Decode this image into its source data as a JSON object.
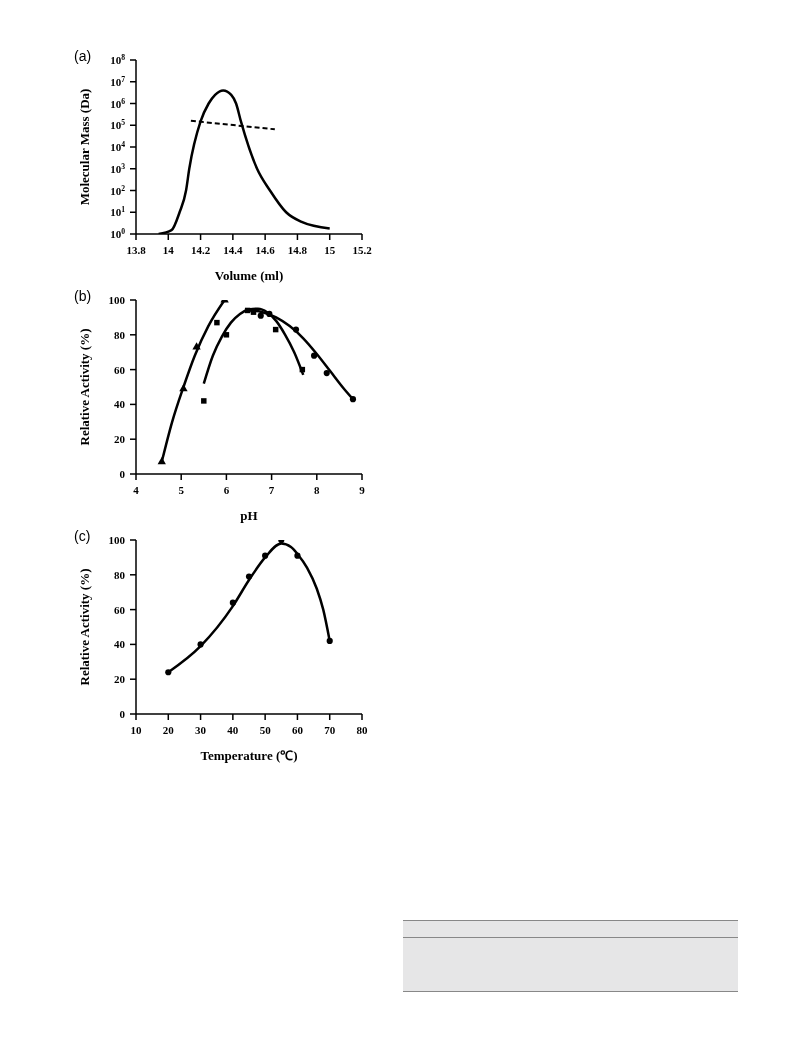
{
  "chart_data": [
    {
      "type": "line",
      "title": "(a)",
      "xlabel": "Volume (ml)",
      "ylabel": "Molecular Mass (Da)",
      "log": "y",
      "legend": false,
      "grid": false,
      "xlim": [
        13.8,
        15.2
      ],
      "xticks": [
        13.8,
        14,
        14.2,
        14.4,
        14.6,
        14.8,
        15,
        15.2
      ],
      "ylim": [
        1,
        100000000
      ],
      "yticks": [
        {
          "value": 1,
          "label": "10$^{0}$"
        },
        {
          "value": 10,
          "label": "10$^{1}$"
        },
        {
          "value": 100,
          "label": "10$^{2}$"
        },
        {
          "value": 1000,
          "label": "10$^{3}$"
        },
        {
          "value": 10000,
          "label": "10$^{4}$"
        },
        {
          "value": 100000,
          "label": "10$^{5}$"
        },
        {
          "value": 1000000,
          "label": "10$^{6}$"
        },
        {
          "value": 10000000,
          "label": "10$^{7}$"
        },
        {
          "value": 100000000,
          "label": "10$^{8}$"
        }
      ],
      "series": [
        {
          "color": "#000000",
          "marker": "none",
          "line_style": "solid",
          "x": [
            13.94,
            14.02,
            14.07,
            14.11,
            14.13,
            14.2,
            14.25,
            14.29,
            14.34,
            14.39,
            14.42,
            14.45,
            14.55,
            14.63,
            14.73,
            14.83,
            15.0
          ],
          "values": [
            1,
            1.5,
            10,
            100,
            1000,
            150000,
            1000000,
            2500000,
            4000000,
            2500000,
            1000000,
            150000,
            1000,
            100,
            10,
            3.5,
            1.8
          ]
        },
        {
          "color": "#000000",
          "marker": "none",
          "line_style": "dashed",
          "x": [
            14.14,
            14.66
          ],
          "values": [
            160000,
            65000
          ]
        }
      ]
    },
    {
      "type": "scatter",
      "title": "(b)",
      "xlabel": "pH",
      "ylabel": "Relative Activity (%)",
      "legend": false,
      "grid": false,
      "xlim": [
        4,
        9
      ],
      "xticks": [
        4,
        5,
        6,
        7,
        8,
        9
      ],
      "ylim": [
        0,
        100
      ],
      "yticks": [
        0,
        20,
        40,
        60,
        80,
        100
      ],
      "series": [
        {
          "color": "#000000",
          "marker": "triangle",
          "x": [
            4.57,
            5.05,
            5.34,
            5.96
          ],
          "values": [
            7,
            49,
            73,
            100
          ]
        },
        {
          "color": "#000000",
          "marker": "square",
          "x": [
            5.5,
            5.79,
            6.0,
            6.47,
            6.6,
            7.09,
            7.68
          ],
          "values": [
            42,
            87,
            80,
            94,
            93,
            83,
            60
          ]
        },
        {
          "color": "#000000",
          "marker": "circle",
          "x": [
            6.76,
            6.95,
            7.54,
            7.94,
            8.22,
            8.8
          ],
          "values": [
            91,
            92,
            83,
            68,
            58,
            43
          ]
        },
        {
          "type": "line",
          "color": "#000000",
          "marker": "none",
          "line_style": "solid",
          "x": [
            4.57,
            4.8,
            5.05,
            5.3,
            5.6,
            5.96
          ],
          "values": [
            7,
            30,
            50,
            68,
            85,
            100
          ]
        },
        {
          "type": "line",
          "color": "#000000",
          "marker": "none",
          "line_style": "solid",
          "x": [
            5.5,
            5.7,
            5.9,
            6.1,
            6.3,
            6.5,
            6.7,
            6.9,
            7.1,
            7.3,
            7.5,
            7.7
          ],
          "values": [
            52,
            68,
            79,
            87,
            92,
            94.5,
            95,
            93,
            88,
            80,
            70,
            57
          ]
        },
        {
          "type": "line",
          "color": "#000000",
          "marker": "none",
          "line_style": "solid",
          "x": [
            6.5,
            6.8,
            7.1,
            7.4,
            7.7,
            8.0,
            8.3,
            8.6,
            8.8
          ],
          "values": [
            94,
            93,
            90,
            85,
            78,
            69,
            59,
            49,
            43
          ]
        }
      ]
    },
    {
      "type": "scatter",
      "title": "(c)",
      "xlabel": "Temperature (℃)",
      "ylabel": "Relative Activity (%)",
      "legend": false,
      "grid": false,
      "xlim": [
        10,
        80
      ],
      "xticks": [
        10,
        20,
        30,
        40,
        50,
        60,
        70,
        80
      ],
      "ylim": [
        0,
        100
      ],
      "yticks": [
        0,
        20,
        40,
        60,
        80,
        100
      ],
      "series": [
        {
          "color": "#000000",
          "marker": "circle",
          "x": [
            20,
            30,
            40,
            45,
            50,
            55,
            60,
            70
          ],
          "values": [
            24,
            40,
            64,
            79,
            91,
            100,
            91,
            42
          ]
        },
        {
          "type": "line",
          "color": "#000000",
          "marker": "none",
          "line_style": "solid",
          "x": [
            20,
            30,
            40,
            45,
            50,
            55,
            58,
            60,
            63,
            66,
            68,
            70
          ],
          "values": [
            24,
            39,
            62,
            77,
            90,
            98,
            96,
            92,
            84,
            72,
            60,
            42
          ]
        }
      ]
    }
  ]
}
